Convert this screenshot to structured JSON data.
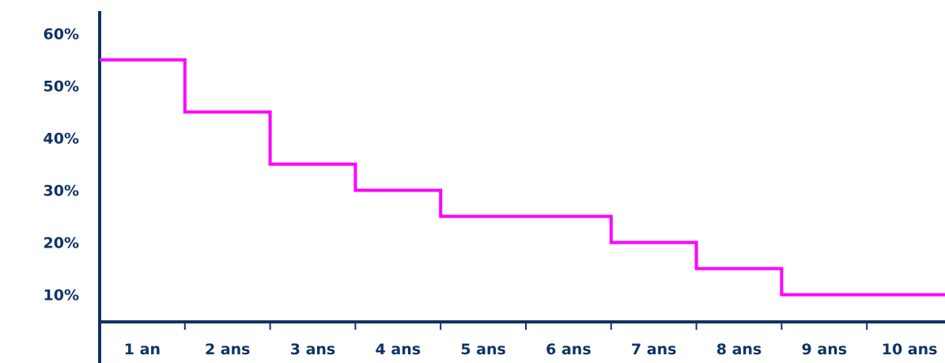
{
  "chart_data": {
    "type": "line",
    "step": "post",
    "title": "",
    "xlabel": "",
    "ylabel": "",
    "categories": [
      "1 an",
      "2 ans",
      "3 ans",
      "4 ans",
      "5 ans",
      "6 ans",
      "7 ans",
      "8 ans",
      "9 ans",
      "10 ans"
    ],
    "series": [
      {
        "values": [
          55,
          45,
          35,
          30,
          25,
          25,
          20,
          15,
          10,
          10
        ]
      }
    ],
    "y_ticks": [
      10,
      20,
      30,
      40,
      50,
      60
    ],
    "y_tick_labels": [
      "10%",
      "20%",
      "30%",
      "40%",
      "50%",
      "60%"
    ],
    "ylim": [
      5,
      65
    ],
    "grid": false,
    "legend": "none",
    "colors": {
      "line": "#ff00ff",
      "axis": "#0f3366",
      "text": "#0f3366"
    }
  }
}
